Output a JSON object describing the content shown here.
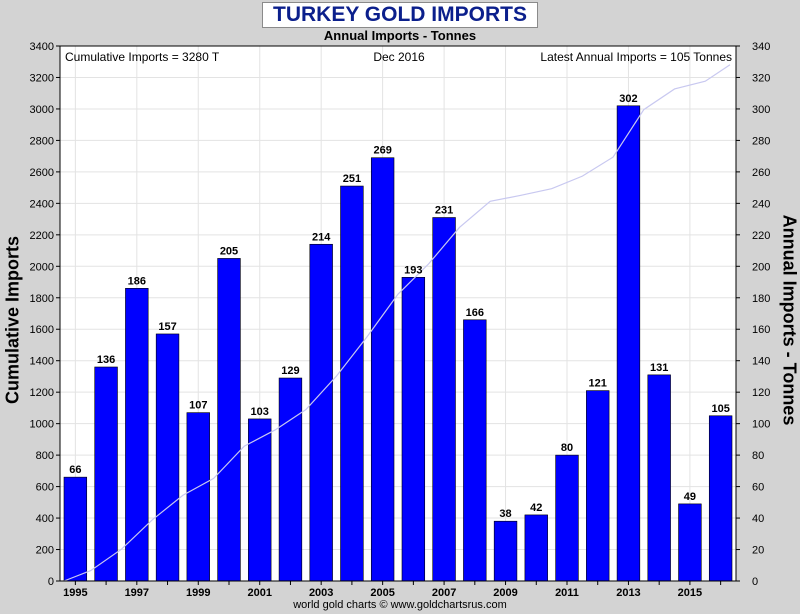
{
  "header": {
    "title": "TURKEY GOLD IMPORTS",
    "subtitle": "Annual Imports - Tonnes"
  },
  "chart_info": {
    "cumulative_label": "Cumulative Imports = 3280 T",
    "date_label": "Dec 2016",
    "latest_label": "Latest Annual Imports = 105 Tonnes"
  },
  "footer": "world gold charts © www.goldchartsrus.com",
  "colors": {
    "bar": "#0000ff",
    "cumulative_line": "#c8c8f0",
    "background": "#d3d3d3",
    "plot_background": "#ffffff",
    "title_color": "#0b1f8c"
  },
  "chart_data": {
    "type": "bar",
    "categories": [
      "1995",
      "1996",
      "1997",
      "1998",
      "1999",
      "2000",
      "2001",
      "2002",
      "2003",
      "2004",
      "2005",
      "2006",
      "2007",
      "2008",
      "2009",
      "2010",
      "2011",
      "2012",
      "2013",
      "2014",
      "2015",
      "2016"
    ],
    "x_tick_labels": [
      "1995",
      "1997",
      "1999",
      "2001",
      "2003",
      "2005",
      "2007",
      "2009",
      "2011",
      "2013",
      "2015"
    ],
    "series": [
      {
        "axis": "right",
        "values": [
          66,
          136,
          186,
          157,
          107,
          205,
          103,
          129,
          214,
          251,
          269,
          193,
          231,
          166,
          38,
          42,
          80,
          121,
          302,
          131,
          49,
          105
        ]
      },
      {
        "type": "line",
        "axis": "left",
        "values": [
          66,
          202,
          388,
          545,
          652,
          857,
          960,
          1089,
          1303,
          1554,
          1823,
          2016,
          2247,
          2413,
          2451,
          2493,
          2573,
          2694,
          2996,
          3127,
          3176,
          3281
        ]
      }
    ],
    "xlabel": "",
    "ylabel_left": "Cumulative Imports",
    "ylabel_right": "Annual Imports - Tonnes",
    "ylim_left": [
      0,
      3400
    ],
    "ylim_right": [
      0,
      340
    ],
    "yticks_left": [
      0,
      200,
      400,
      600,
      800,
      1000,
      1200,
      1400,
      1600,
      1800,
      2000,
      2200,
      2400,
      2600,
      2800,
      3000,
      3200,
      3400
    ],
    "yticks_right": [
      0,
      20,
      40,
      60,
      80,
      100,
      120,
      140,
      160,
      180,
      200,
      220,
      240,
      260,
      280,
      300,
      320,
      340
    ],
    "grid": true,
    "legend": "none"
  }
}
